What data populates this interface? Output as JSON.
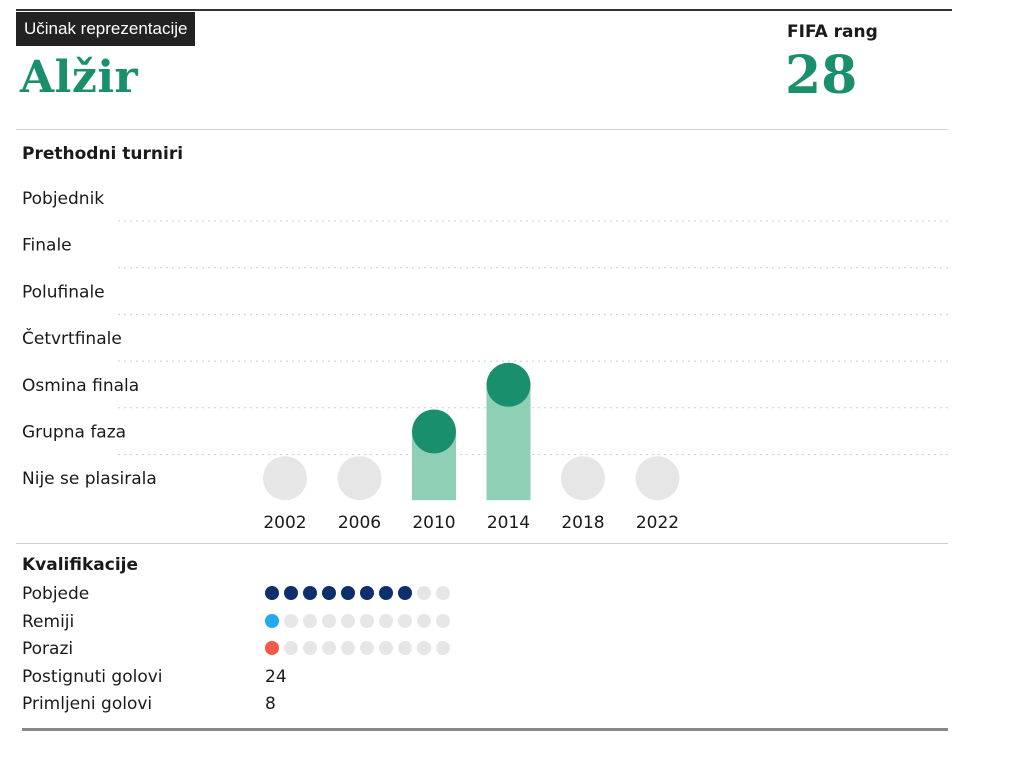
{
  "header": {
    "badge": "Učinak reprezentacije",
    "country": "Alžir",
    "rank_label": "FIFA rang",
    "rank_value": "28"
  },
  "previous": {
    "title": "Prethodni turniri"
  },
  "chart_data": {
    "type": "scatter",
    "stages": [
      "Pobjednik",
      "Finale",
      "Polufinale",
      "Četvrtfinale",
      "Osmina finala",
      "Grupna faza",
      "Nije se plasirala"
    ],
    "years": [
      "2002",
      "2006",
      "2010",
      "2014",
      "2018",
      "2022"
    ],
    "results": [
      "Nije se plasirala",
      "Nije se plasirala",
      "Grupna faza",
      "Osmina finala",
      "Nije se plasirala",
      "Nije se plasirala"
    ],
    "colors": {
      "qualified": "#1a8f6e",
      "bar": "#8fcfb6",
      "not_qualified": "#e6e6e6",
      "grid": "#cccccc"
    }
  },
  "qualifiers": {
    "title": "Kvalifikacije",
    "total_matches": 10,
    "rows": [
      {
        "label": "Pobjede",
        "count": 8,
        "color": "#0d2f6b"
      },
      {
        "label": "Remiji",
        "count": 1,
        "color": "#22aaee"
      },
      {
        "label": "Porazi",
        "count": 1,
        "color": "#f25a4a"
      }
    ],
    "goals_for_label": "Postignuti golovi",
    "goals_for": "24",
    "goals_against_label": "Primljeni golovi",
    "goals_against": "8"
  }
}
